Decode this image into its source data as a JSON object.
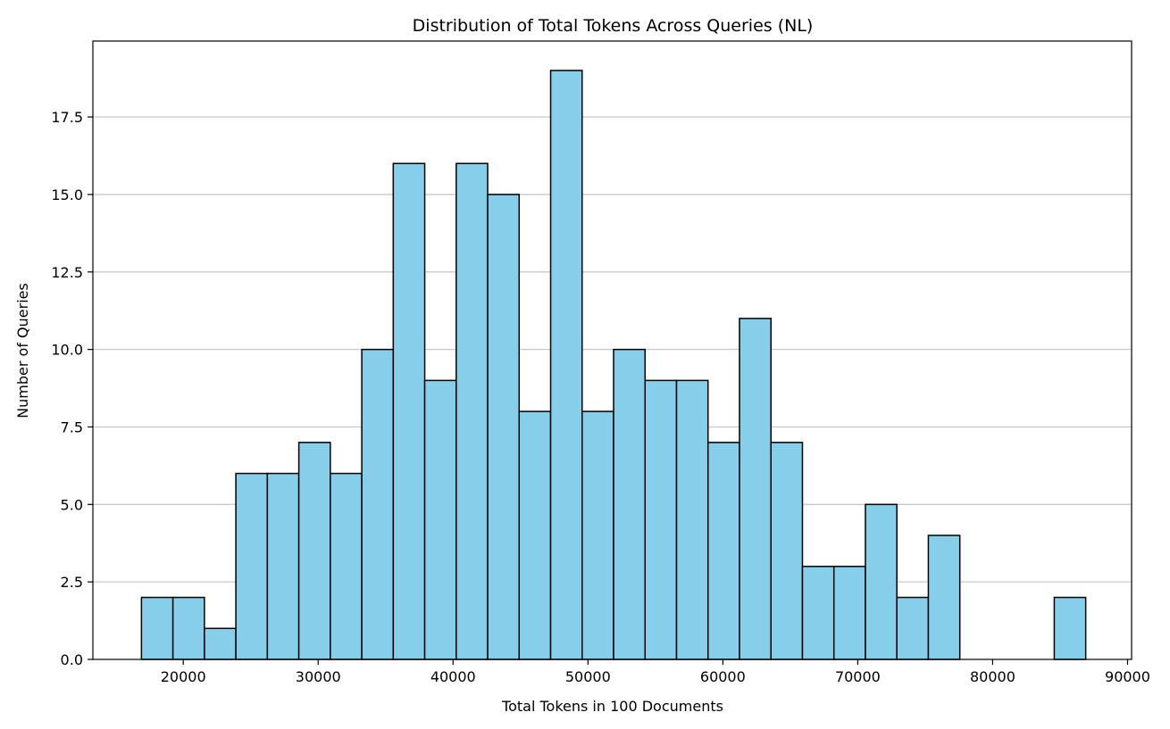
{
  "chart_data": {
    "type": "bar",
    "title": "Distribution of Total Tokens Across Queries (NL)",
    "xlabel": "Total Tokens in 100 Documents",
    "ylabel": "Number of Queries",
    "xlim": [
      13300,
      90300
    ],
    "ylim": [
      0,
      19.95
    ],
    "x_ticks": [
      20000,
      30000,
      40000,
      50000,
      60000,
      70000,
      80000,
      90000
    ],
    "y_ticks": [
      0.0,
      2.5,
      5.0,
      7.5,
      10.0,
      12.5,
      15.0,
      17.5
    ],
    "x_tick_labels": [
      "20000",
      "30000",
      "40000",
      "50000",
      "60000",
      "70000",
      "80000",
      "90000"
    ],
    "y_tick_labels": [
      "0.0",
      "2.5",
      "5.0",
      "7.5",
      "10.0",
      "12.5",
      "15.0",
      "17.5"
    ],
    "bin_start": 16900,
    "bin_end": 86900,
    "values": [
      2,
      2,
      1,
      6,
      6,
      7,
      6,
      10,
      16,
      9,
      16,
      15,
      8,
      19,
      8,
      10,
      9,
      9,
      7,
      11,
      7,
      3,
      3,
      5,
      2,
      4,
      0,
      0,
      0,
      2
    ],
    "grid": "y",
    "colors": {
      "bar_fill": "#87CEEB",
      "bar_edge": "#000000",
      "grid": "#c8c8c8"
    }
  }
}
